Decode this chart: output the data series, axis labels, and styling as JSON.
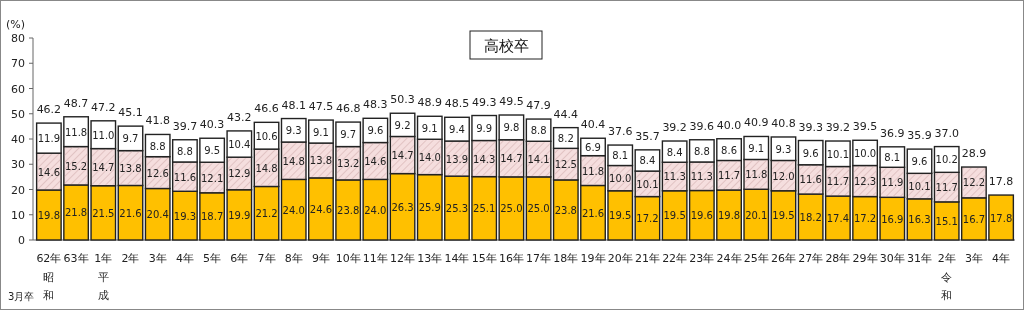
{
  "chart_data": {
    "type": "bar",
    "stacked": true,
    "title": "高校卒",
    "ylabel": "(%)",
    "annotations": [
      "3月卒"
    ],
    "categories": [
      "62年昭和",
      "63年",
      "1年平成",
      "2年",
      "3年",
      "4年",
      "5年",
      "6年",
      "7年",
      "8年",
      "9年",
      "10年",
      "11年",
      "12年",
      "13年",
      "14年",
      "15年",
      "16年",
      "17年",
      "18年",
      "19年",
      "20年",
      "21年",
      "22年",
      "23年",
      "24年",
      "25年",
      "26年",
      "27年",
      "28年",
      "29年",
      "30年",
      "31年",
      "2年令和",
      "3年",
      "4年"
    ],
    "series": [
      {
        "color": "#ffc000",
        "values": [
          19.8,
          21.8,
          21.5,
          21.6,
          20.4,
          19.3,
          18.7,
          19.9,
          21.2,
          24.0,
          24.6,
          23.8,
          24.0,
          26.3,
          25.9,
          25.3,
          25.1,
          25.0,
          25.0,
          23.8,
          21.6,
          19.5,
          17.2,
          19.5,
          19.6,
          19.8,
          20.1,
          19.5,
          18.2,
          17.4,
          17.2,
          16.9,
          16.3,
          15.1,
          16.7,
          17.8
        ],
        "value_labels": [
          "19.8",
          "21.8",
          "21.5",
          "21.6",
          "20.4",
          "19.3",
          "18.7",
          "19.9",
          "21.2",
          "24.0",
          "24.6",
          "23.8",
          "24.0",
          "26.3",
          "25.9",
          "25.3",
          "25.1",
          "25.0",
          "25.0",
          "23.8",
          "21.6",
          "19.5",
          "17.2",
          "19.5",
          "19.6",
          "19.8",
          "20.1",
          "19.5",
          "18.2",
          "17.4",
          "17.2",
          "16.9",
          "16.3",
          "15.1",
          "16.7",
          "17.8"
        ]
      },
      {
        "color": "#f5dede",
        "values": [
          14.6,
          15.2,
          14.7,
          13.8,
          12.6,
          11.6,
          12.1,
          12.9,
          14.8,
          14.8,
          13.8,
          13.2,
          14.6,
          14.7,
          14.0,
          13.9,
          14.3,
          14.7,
          14.1,
          12.5,
          11.8,
          10.0,
          10.1,
          11.3,
          11.3,
          11.7,
          11.8,
          12.0,
          11.6,
          11.7,
          12.3,
          11.9,
          10.1,
          11.7,
          12.2,
          null
        ],
        "value_labels": [
          "14.6",
          "15.2",
          "14.7",
          "13.8",
          "12.6",
          "11.6",
          "12.1",
          "12.9",
          "14.8",
          "14.8",
          "13.8",
          "13.2",
          "14.6",
          "14.7",
          "14.0",
          "13.9",
          "14.3",
          "14.7",
          "14.1",
          "12.5",
          "11.8",
          "10.0",
          "10.1",
          "11.3",
          "11.3",
          "11.7",
          "11.8",
          "12.0",
          "11.6",
          "11.7",
          "12.3",
          "11.9",
          "10.1",
          "11.7",
          "12.2",
          null
        ]
      },
      {
        "color": "#ffffff",
        "values": [
          11.9,
          11.8,
          11.0,
          9.7,
          8.8,
          8.8,
          9.5,
          10.4,
          10.6,
          9.3,
          9.1,
          9.7,
          9.6,
          9.2,
          9.1,
          9.4,
          9.9,
          9.8,
          8.8,
          8.2,
          6.9,
          8.1,
          8.4,
          8.4,
          8.8,
          8.6,
          9.1,
          9.3,
          9.6,
          10.1,
          10.0,
          8.1,
          9.6,
          10.2,
          null,
          null
        ],
        "value_labels": [
          "11.9",
          "11.8",
          "11.0",
          "9.7",
          "8.8",
          "8.8",
          "9.5",
          "10.4",
          "10.6",
          "9.3",
          "9.1",
          "9.7",
          "9.6",
          "9.2",
          "9.1",
          "9.4",
          "9.9",
          "9.8",
          "8.8",
          "8.2",
          "6.9",
          "8.1",
          "8.4",
          "8.4",
          "8.8",
          "8.6",
          "9.1",
          "9.3",
          "9.6",
          "10.1",
          "10.0",
          "8.1",
          "9.6",
          "10.2",
          null,
          null
        ]
      }
    ],
    "totals": [
      "46.2",
      "48.7",
      "47.2",
      "45.1",
      "41.8",
      "39.7",
      "40.3",
      "43.2",
      "46.6",
      "48.1",
      "47.5",
      "46.8",
      "48.3",
      "50.3",
      "48.9",
      "48.5",
      "49.3",
      "49.5",
      "47.9",
      "44.4",
      "40.4",
      "37.6",
      "35.7",
      "39.2",
      "39.6",
      "40.0",
      "40.9",
      "40.8",
      "39.3",
      "39.2",
      "39.5",
      "36.9",
      "35.9",
      "37.0",
      "28.9",
      "17.8"
    ],
    "ylim": [
      0,
      80
    ],
    "yticks": [
      0,
      10,
      20,
      30,
      40,
      50,
      60,
      70,
      80
    ],
    "grid": false
  }
}
